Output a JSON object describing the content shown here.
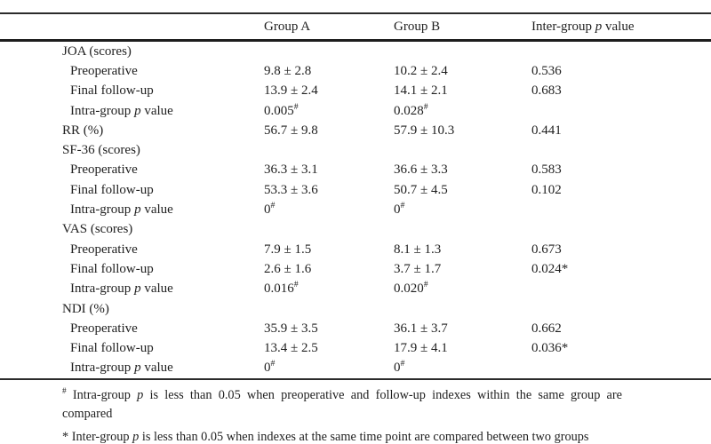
{
  "page": {
    "background": "#ffffff",
    "text_color": "#1f1f1f",
    "rule_color": "#2b2b2b"
  },
  "table": {
    "header": {
      "group_a": "Group A",
      "group_b": "Group B",
      "p_pre": "Inter-group ",
      "p_italic": "p",
      "p_post": " value"
    },
    "rows": [
      {
        "label": "JOA (scores)",
        "indent": false,
        "a": "",
        "b": "",
        "p": ""
      },
      {
        "label": "Preoperative",
        "indent": true,
        "a": "9.8 ± 2.8",
        "b": "10.2 ± 2.4",
        "p": "0.536"
      },
      {
        "label": "Final follow-up",
        "indent": true,
        "a": "13.9 ± 2.4",
        "b": "14.1 ± 2.1",
        "p": "0.683"
      },
      {
        "label_pre": "Intra-group ",
        "label_it": "p",
        "label_post": " value",
        "indent": true,
        "a": "0.005",
        "a_sup": "#",
        "b": "0.028",
        "b_sup": "#",
        "p": ""
      },
      {
        "label": "RR (%)",
        "indent": false,
        "a": "56.7 ± 9.8",
        "b": "57.9 ± 10.3",
        "p": "0.441"
      },
      {
        "label": "SF-36 (scores)",
        "indent": false,
        "a": "",
        "b": "",
        "p": ""
      },
      {
        "label": "Preoperative",
        "indent": true,
        "a": "36.3 ± 3.1",
        "b": "36.6 ± 3.3",
        "p": "0.583"
      },
      {
        "label": "Final follow-up",
        "indent": true,
        "a": "53.3 ± 3.6",
        "b": "50.7 ± 4.5",
        "p": "0.102"
      },
      {
        "label_pre": "Intra-group ",
        "label_it": "p",
        "label_post": " value",
        "indent": true,
        "a": "0",
        "a_sup": "#",
        "b": "0",
        "b_sup": "#",
        "p": ""
      },
      {
        "label": "VAS (scores)",
        "indent": false,
        "a": "",
        "b": "",
        "p": ""
      },
      {
        "label": "Preoperative",
        "indent": true,
        "a": "7.9 ± 1.5",
        "b": "8.1 ± 1.3",
        "p": "0.673"
      },
      {
        "label": "Final follow-up",
        "indent": true,
        "a": "2.6 ± 1.6",
        "b": "3.7 ± 1.7",
        "p": "0.024*"
      },
      {
        "label_pre": "Intra-group ",
        "label_it": "p",
        "label_post": " value",
        "indent": true,
        "a": "0.016",
        "a_sup": "#",
        "b": "0.020",
        "b_sup": "#",
        "p": ""
      },
      {
        "label": "NDI (%)",
        "indent": false,
        "a": "",
        "b": "",
        "p": ""
      },
      {
        "label": "Preoperative",
        "indent": true,
        "a": "35.9 ± 3.5",
        "b": "36.1 ± 3.7",
        "p": "0.662"
      },
      {
        "label": "Final follow-up",
        "indent": true,
        "a": "13.4 ± 2.5",
        "b": "17.9 ± 4.1",
        "p": "0.036*"
      },
      {
        "label_pre": "Intra-group ",
        "label_it": "p",
        "label_post": " value",
        "indent": true,
        "a": "0",
        "a_sup": "#",
        "b": "0",
        "b_sup": "#",
        "p": ""
      }
    ]
  },
  "footnotes": [
    {
      "marker": "#",
      "pre": " Intra-group ",
      "italic": "p",
      "post": " is less than 0.05 when preoperative and follow-up indexes within the same group are compared"
    },
    {
      "marker": "*",
      "pre": " Inter-group ",
      "italic": "p",
      "post": " is less than 0.05 when indexes at the same time point are compared between two groups"
    }
  ]
}
